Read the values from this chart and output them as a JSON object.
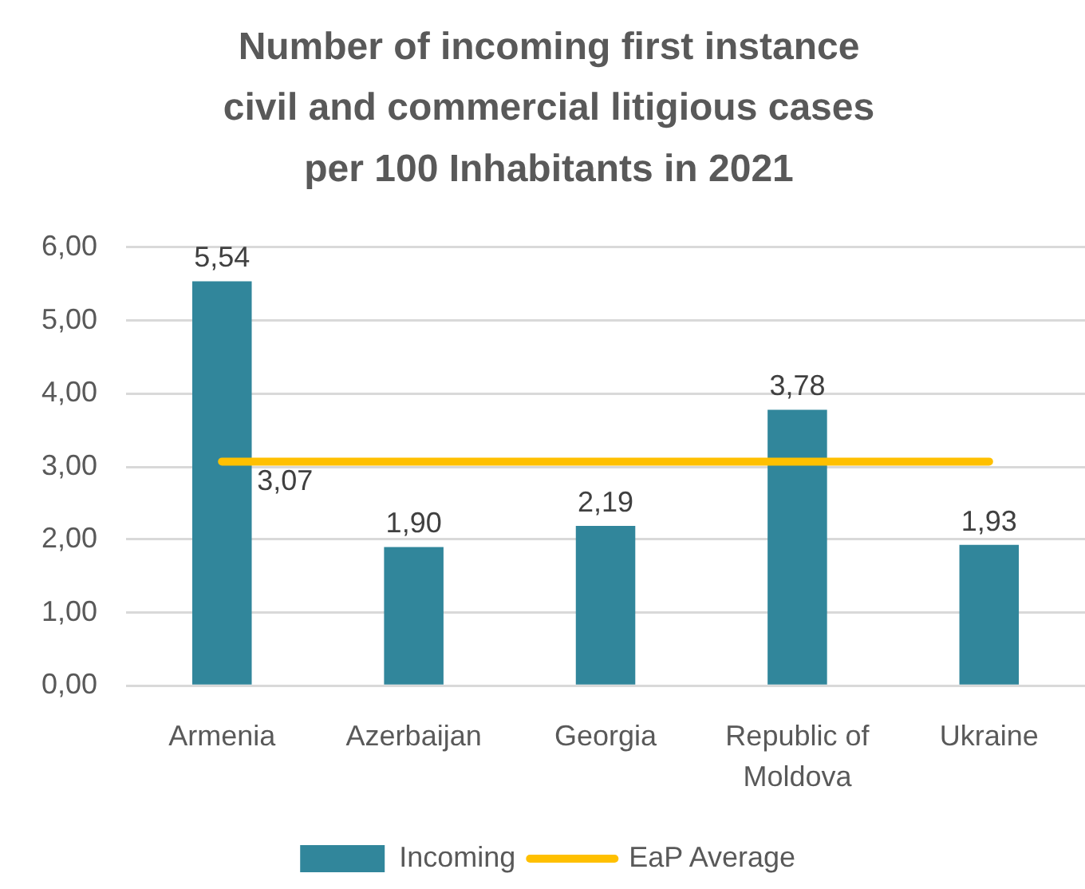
{
  "chart_data": {
    "type": "bar",
    "title": "Number of incoming first instance civil and commercial litigious cases per 100 Inhabitants in 2021",
    "categories": [
      "Armenia",
      "Azerbaijan",
      "Georgia",
      "Republic of Moldova",
      "Ukraine"
    ],
    "series": [
      {
        "name": "Incoming",
        "color": "#31869b",
        "values": [
          5.54,
          1.9,
          2.19,
          3.78,
          1.93
        ],
        "value_labels": [
          "5,54",
          "1,90",
          "2,19",
          "3,78",
          "1,93"
        ]
      },
      {
        "name": "EaP Average",
        "type": "line",
        "color": "#ffc000",
        "values": [
          3.07,
          3.07,
          3.07,
          3.07,
          3.07
        ],
        "value_labels": [
          "3,07",
          null,
          null,
          null,
          null
        ]
      }
    ],
    "ylim": [
      0,
      6
    ],
    "yticks": [
      {
        "value": 0,
        "label": "0,00"
      },
      {
        "value": 1,
        "label": "1,00"
      },
      {
        "value": 2,
        "label": "2,00"
      },
      {
        "value": 3,
        "label": "3,00"
      },
      {
        "value": 4,
        "label": "4,00"
      },
      {
        "value": 5,
        "label": "5,00"
      },
      {
        "value": 6,
        "label": "6,00"
      }
    ],
    "grid": "y",
    "legend": "bottom"
  }
}
